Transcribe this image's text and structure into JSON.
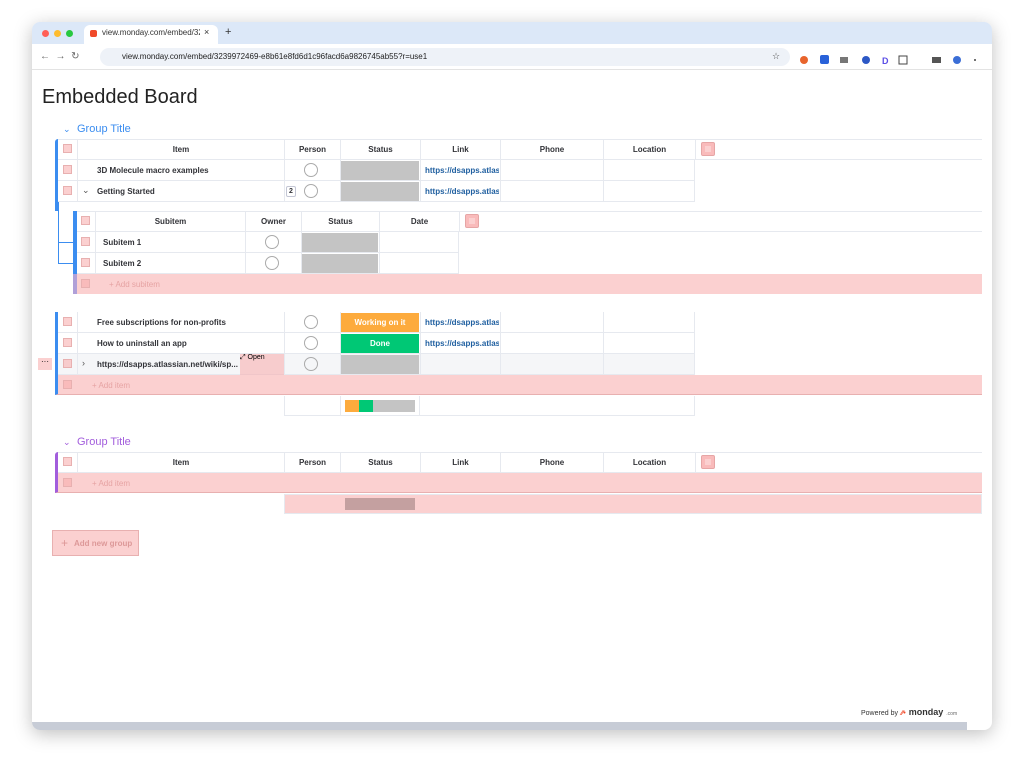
{
  "browser": {
    "tab_title": "view.monday.com/embed/32",
    "url": "view.monday.com/embed/3239972469-e8b61e8fd6d1c96facd6a9826745ab55?r=use1"
  },
  "header": {
    "title": "Embedded Board"
  },
  "groups": [
    {
      "title": "Group Title",
      "color": "#3b8df0",
      "columns": [
        "Item",
        "Person",
        "Status",
        "Link",
        "Phone",
        "Location"
      ],
      "rows": [
        {
          "item": "3D Molecule macro examples",
          "link": "https://dsapps.atlas..."
        },
        {
          "item": "Getting Started",
          "subitem_count": 2,
          "link": "https://dsapps.atlas...",
          "subitems": {
            "columns": [
              "Subitem",
              "Owner",
              "Status",
              "Date"
            ],
            "rows": [
              "Subitem 1",
              "Subitem 2"
            ],
            "add": "+ Add subitem"
          }
        },
        {
          "item": "Free subscriptions for non-profits",
          "status": {
            "label": "Working on it",
            "color": "#fdab3d"
          },
          "link": "https://dsapps.atlas..."
        },
        {
          "item": "How to uninstall an app",
          "status": {
            "label": "Done",
            "color": "#00c875"
          },
          "link": "https://dsapps.atlas..."
        },
        {
          "item": "https://dsapps.atlassian.net/wiki/sp...",
          "action": "Open"
        }
      ],
      "add_item": "+ Add item"
    },
    {
      "title": "Group Title",
      "color": "#a25ddc",
      "columns": [
        "Item",
        "Person",
        "Status",
        "Link",
        "Phone",
        "Location"
      ],
      "rows": [],
      "add_item": "+ Add item"
    }
  ],
  "add_group": "Add new group",
  "footer": {
    "powered_by": "Powered by",
    "brand": "monday",
    "brand_suffix": ".com"
  }
}
